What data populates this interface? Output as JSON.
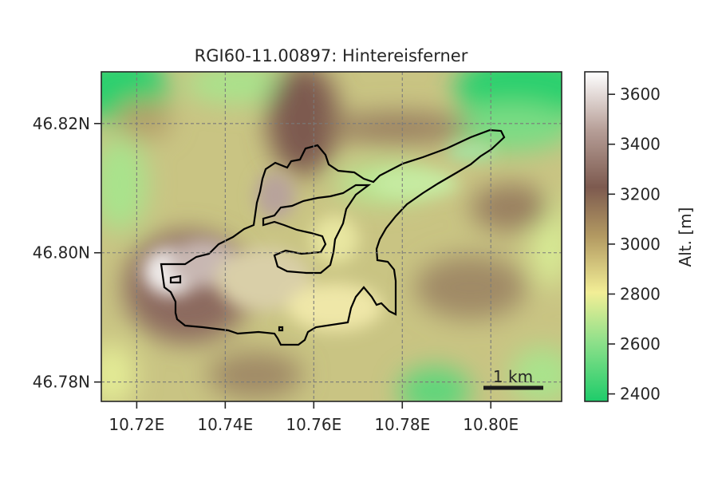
{
  "title": "RGI60-11.00897: Hintereisferner",
  "chart_data": {
    "type": "heatmap",
    "title": "RGI60-11.00897: Hintereisferner",
    "x_ticks": [
      {
        "value": 10.72,
        "label": "10.72E"
      },
      {
        "value": 10.74,
        "label": "10.74E"
      },
      {
        "value": 10.76,
        "label": "10.76E"
      },
      {
        "value": 10.78,
        "label": "10.78E"
      },
      {
        "value": 10.8,
        "label": "10.80E"
      }
    ],
    "y_ticks": [
      {
        "value": 46.78,
        "label": "46.78N"
      },
      {
        "value": 46.8,
        "label": "46.80N"
      },
      {
        "value": 46.82,
        "label": "46.82N"
      }
    ],
    "xlim": [
      10.712,
      10.816
    ],
    "ylim": [
      46.777,
      46.828
    ],
    "grid": true,
    "colorbar": {
      "label": "Alt. [m]",
      "range": [
        2370,
        3690
      ],
      "ticks": [
        2400,
        2600,
        2800,
        3000,
        3200,
        3400,
        3600
      ],
      "colormap": "terrain"
    },
    "scale_bar": {
      "label": "1 km",
      "length_km": 1
    },
    "outline_color": "#000000"
  }
}
